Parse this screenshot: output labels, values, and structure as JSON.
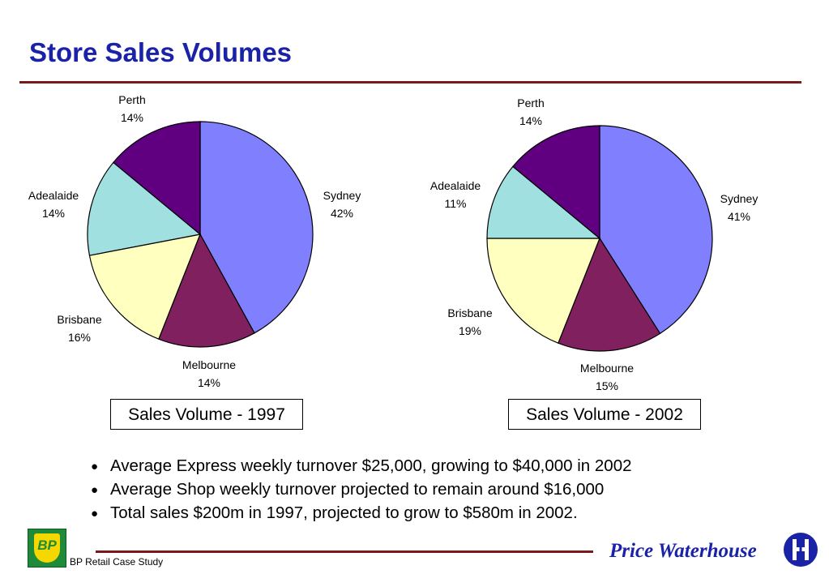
{
  "slide": {
    "title": "Store Sales Volumes",
    "bullets": [
      "Average Express weekly turnover $25,000, growing to $40,000 in 2002",
      "Average Shop weekly turnover projected to remain around $16,000",
      "Total sales $200m in 1997, projected to grow to $580m in 2002."
    ],
    "footer": {
      "left_text": "BP Retail Case Study",
      "right_text": "Price Waterhouse",
      "bp_logo_text": "BP"
    }
  },
  "colors": {
    "title": "#1a22a8",
    "rule": "#7a1a1a",
    "Sydney": "#8080ff",
    "Melbourne": "#80205f",
    "Brisbane": "#ffffc0",
    "Adealaide": "#a0e0e0",
    "Perth": "#600080"
  },
  "chart_data": [
    {
      "type": "pie",
      "caption": "Sales Volume - 1997",
      "labels": [
        "Sydney",
        "Melbourne",
        "Brisbane",
        "Adealaide",
        "Perth"
      ],
      "values": [
        42,
        14,
        16,
        14,
        14
      ],
      "value_labels": [
        "42%",
        "14%",
        "16%",
        "14%",
        "14%"
      ]
    },
    {
      "type": "pie",
      "caption": "Sales Volume - 2002",
      "labels": [
        "Sydney",
        "Melbourne",
        "Brisbane",
        "Adealaide",
        "Perth"
      ],
      "values": [
        41,
        15,
        19,
        11,
        14
      ],
      "value_labels": [
        "41%",
        "15%",
        "19%",
        "11%",
        "14%"
      ]
    }
  ]
}
